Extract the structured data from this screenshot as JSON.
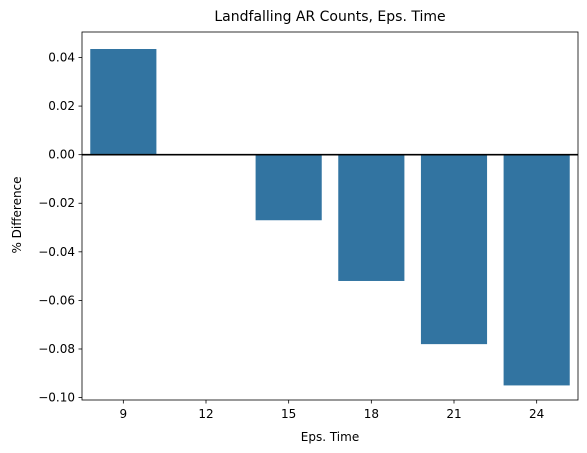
{
  "chart_data": {
    "type": "bar",
    "title": "Landfalling AR Counts, Eps. Time",
    "xlabel": "Eps. Time",
    "ylabel": "% Difference",
    "categories": [
      "9",
      "12",
      "15",
      "18",
      "21",
      "24"
    ],
    "values": [
      0.0435,
      0.0,
      -0.027,
      -0.052,
      -0.078,
      -0.095
    ],
    "ylim": [
      -0.101,
      0.0505
    ],
    "yticks": [
      "0.04",
      "0.02",
      "0.00",
      "-0.02",
      "-0.04",
      "-0.06",
      "-0.08",
      "-0.10"
    ],
    "ytick_values": [
      0.04,
      0.02,
      0.0,
      -0.02,
      -0.04,
      -0.06,
      -0.08,
      -0.1
    ],
    "bar_color": "#3274a1",
    "zero_line": true,
    "grid": false
  }
}
